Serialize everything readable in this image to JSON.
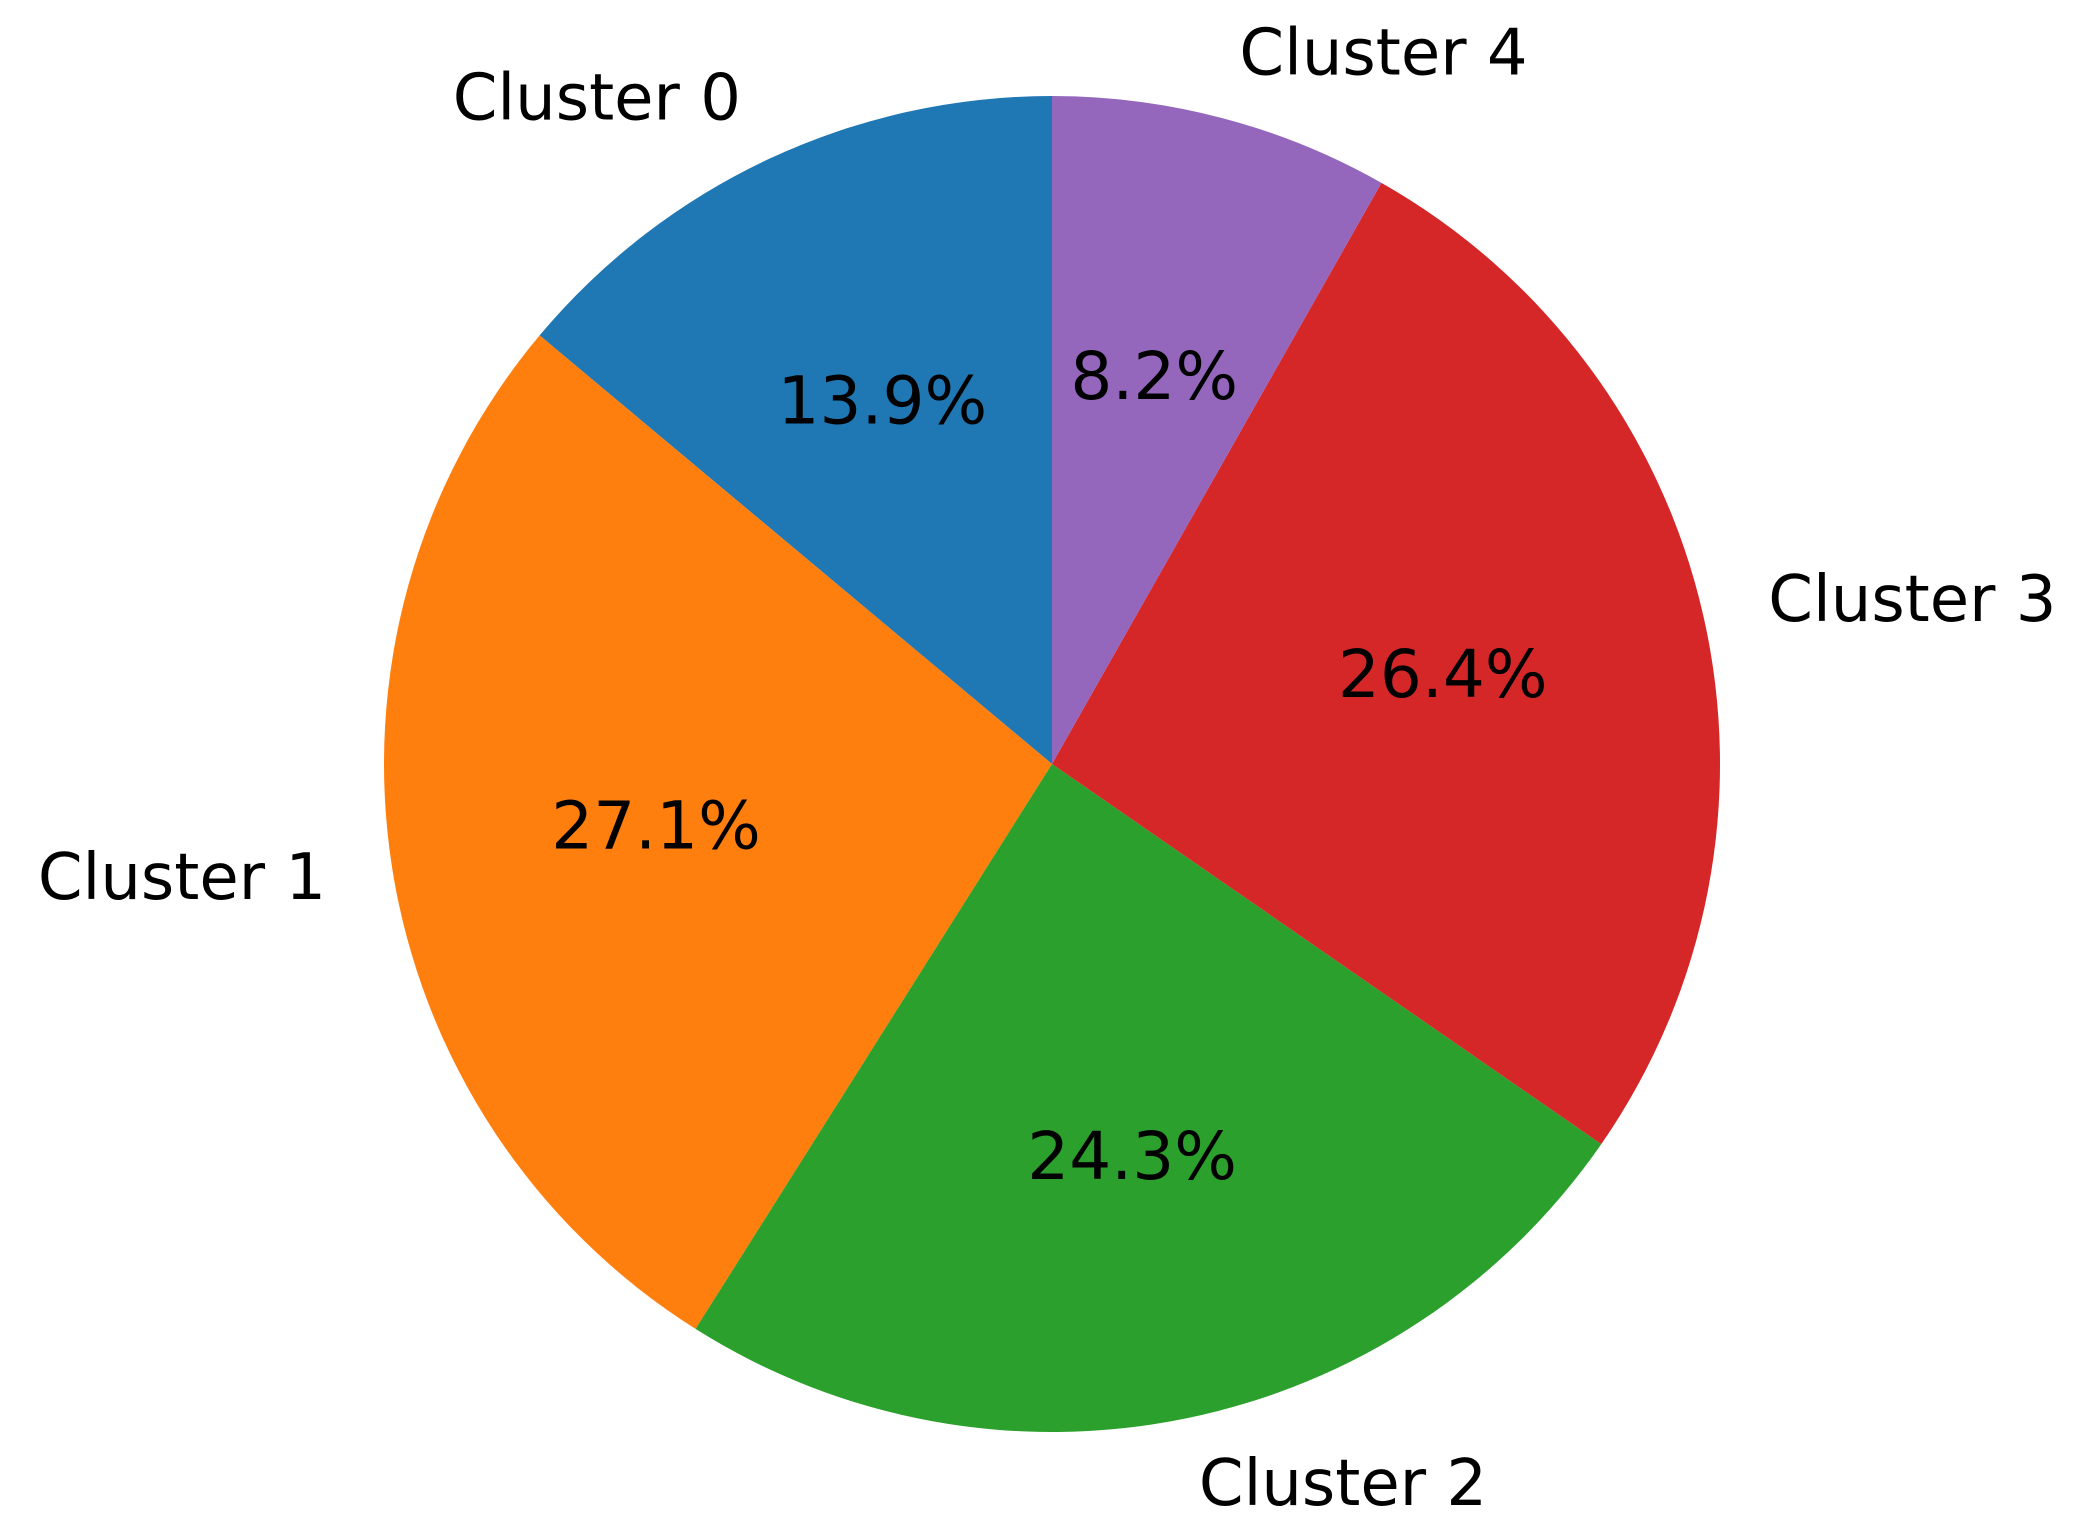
{
  "chart_data": {
    "type": "pie",
    "title": "",
    "labels": [
      "Cluster 0",
      "Cluster 1",
      "Cluster 2",
      "Cluster 3",
      "Cluster 4"
    ],
    "values": [
      13.9,
      27.1,
      24.3,
      26.4,
      8.2
    ],
    "value_labels": [
      "13.9%",
      "27.1%",
      "24.3%",
      "26.4%",
      "8.2%"
    ],
    "colors": [
      "#1f77b4",
      "#ff7f0e",
      "#2ca02c",
      "#d62728",
      "#9467bd"
    ],
    "start_angle_deg": 90,
    "direction": "counterclockwise",
    "legend": "none"
  }
}
